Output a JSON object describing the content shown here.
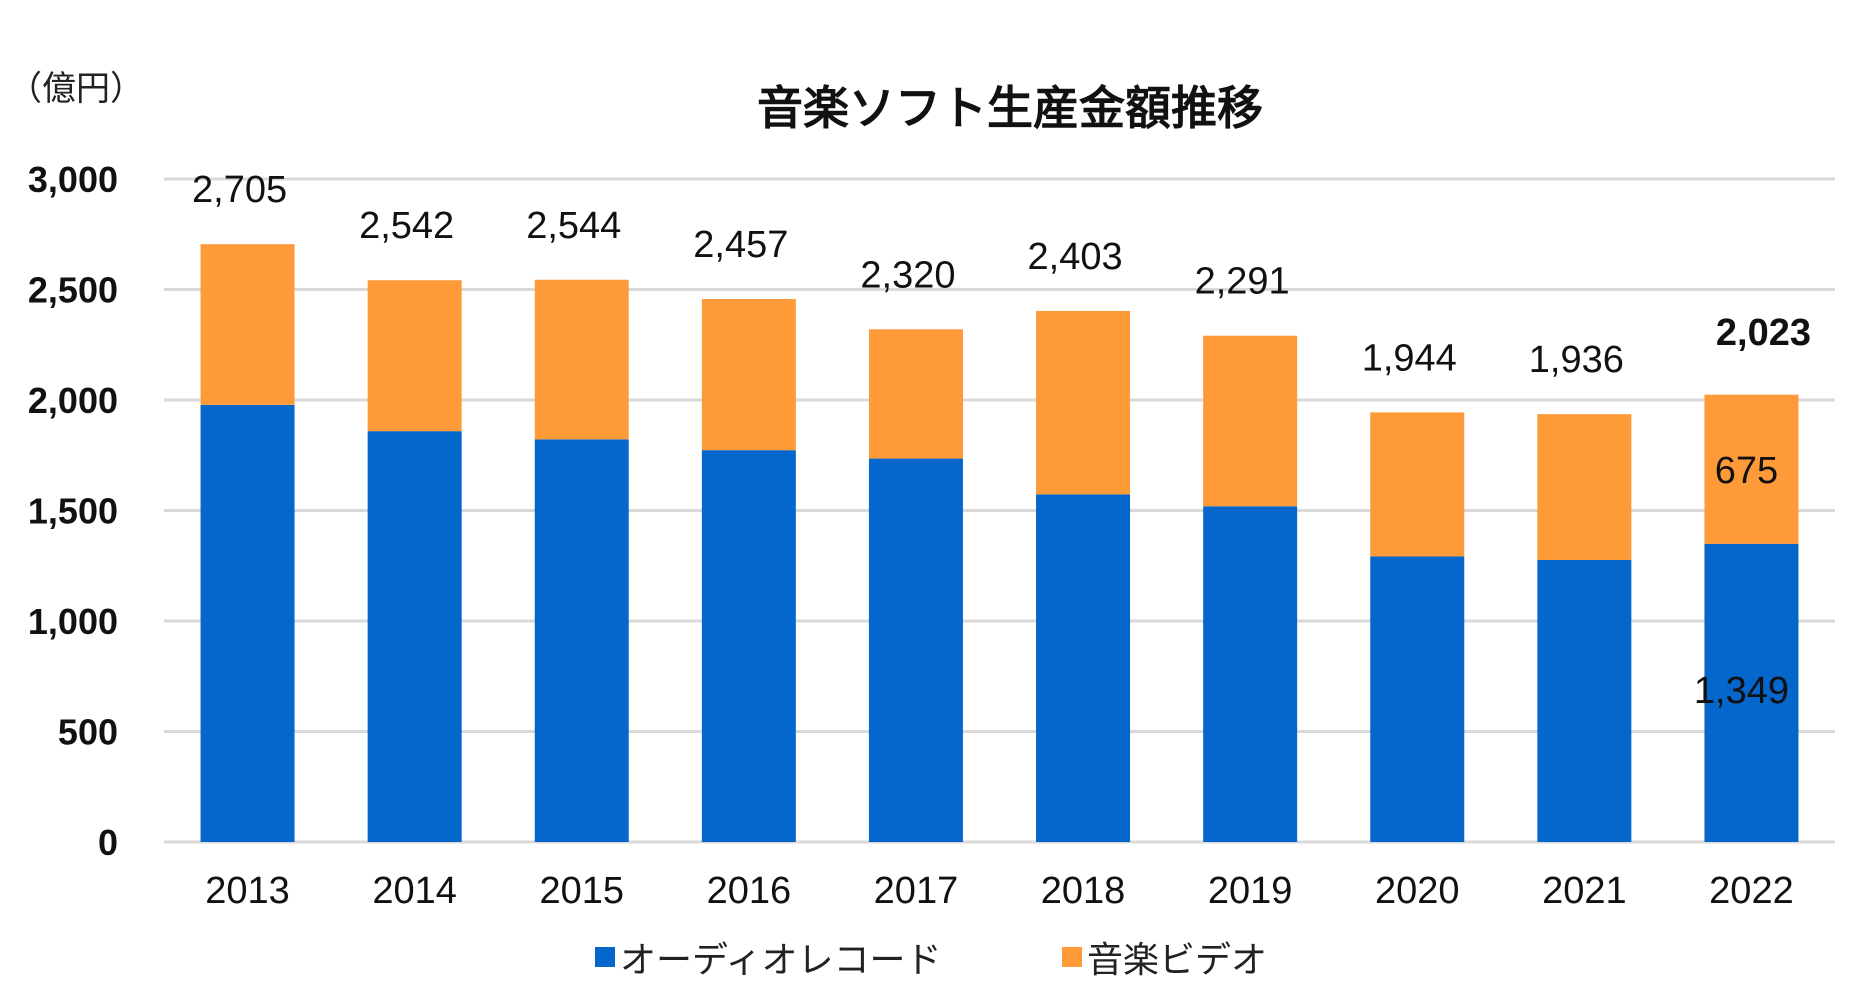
{
  "chart_data": {
    "type": "bar",
    "stacked": true,
    "title": "音楽ソフト生産金額推移",
    "ylabel": "（億円）",
    "xlabel": "",
    "ylim": [
      0,
      3000
    ],
    "yticks": [
      0,
      500,
      1000,
      1500,
      2000,
      2500,
      3000
    ],
    "ytick_labels": [
      "0",
      "500",
      "1,000",
      "1,500",
      "2,000",
      "2,500",
      "3,000"
    ],
    "grid": true,
    "legend_position": "bottom",
    "categories": [
      "2013",
      "2014",
      "2015",
      "2016",
      "2017",
      "2018",
      "2019",
      "2020",
      "2021",
      "2022"
    ],
    "series": [
      {
        "name": "オーディオレコード",
        "color": "#0566CC",
        "values": [
          1978,
          1859,
          1822,
          1773,
          1735,
          1573,
          1519,
          1292,
          1276,
          1349
        ]
      },
      {
        "name": "音楽ビデオ",
        "color": "#FF9A38",
        "values": [
          727,
          683,
          722,
          684,
          585,
          830,
          772,
          652,
          660,
          675
        ]
      }
    ],
    "total_labels": [
      "2,705",
      "2,542",
      "2,544",
      "2,457",
      "2,320",
      "2,403",
      "2,291",
      "1,944",
      "1,936",
      "2,023"
    ],
    "totals": [
      2705,
      2542,
      2544,
      2457,
      2320,
      2403,
      2291,
      1944,
      1936,
      2023
    ],
    "annotations": {
      "audio_2022": "1,349",
      "video_2022": "675"
    }
  }
}
